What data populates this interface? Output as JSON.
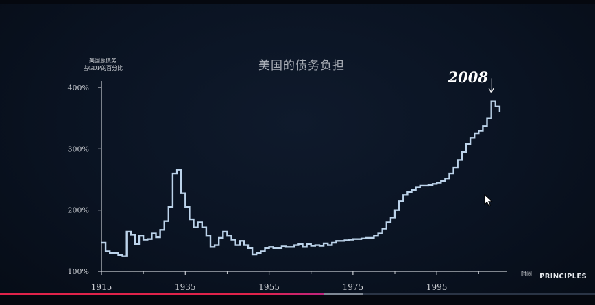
{
  "brand": "PRINCIPLES",
  "video": {
    "progress_fraction": 0.545,
    "buffered_fraction": 0.61
  },
  "chart_data": {
    "type": "line",
    "title": "美国的债务负担",
    "ylabel_lines": [
      "美国总债务",
      "占GDP的百分比"
    ],
    "xlabel": "时间",
    "annotation": "2008",
    "annotation_x": 2008,
    "xlim": [
      1915,
      2011
    ],
    "ylim": [
      100,
      400
    ],
    "xticks": [
      1915,
      1935,
      1955,
      1975,
      1995
    ],
    "yticks": [
      {
        "value": 100,
        "label": "100%"
      },
      {
        "value": 200,
        "label": "200%"
      },
      {
        "value": 300,
        "label": "300%"
      },
      {
        "value": 400,
        "label": "400%"
      }
    ],
    "colors": {
      "line": "#bcd3ea",
      "axis": "#c8ccd2",
      "text": "#c9ccd1"
    },
    "series": [
      {
        "values": [
          [
            1915,
            147
          ],
          [
            1916,
            133
          ],
          [
            1917,
            130
          ],
          [
            1918,
            130
          ],
          [
            1919,
            127
          ],
          [
            1920,
            125
          ],
          [
            1921,
            165
          ],
          [
            1922,
            160
          ],
          [
            1923,
            145
          ],
          [
            1924,
            158
          ],
          [
            1925,
            152
          ],
          [
            1926,
            153
          ],
          [
            1927,
            162
          ],
          [
            1928,
            156
          ],
          [
            1929,
            168
          ],
          [
            1930,
            182
          ],
          [
            1931,
            205
          ],
          [
            1932,
            260
          ],
          [
            1933,
            266
          ],
          [
            1934,
            228
          ],
          [
            1935,
            205
          ],
          [
            1936,
            185
          ],
          [
            1937,
            172
          ],
          [
            1938,
            180
          ],
          [
            1939,
            172
          ],
          [
            1940,
            158
          ],
          [
            1941,
            140
          ],
          [
            1942,
            143
          ],
          [
            1943,
            155
          ],
          [
            1944,
            165
          ],
          [
            1945,
            158
          ],
          [
            1946,
            152
          ],
          [
            1947,
            143
          ],
          [
            1948,
            150
          ],
          [
            1949,
            143
          ],
          [
            1950,
            138
          ],
          [
            1951,
            128
          ],
          [
            1952,
            130
          ],
          [
            1953,
            133
          ],
          [
            1954,
            138
          ],
          [
            1955,
            140
          ],
          [
            1956,
            138
          ],
          [
            1957,
            138
          ],
          [
            1958,
            141
          ],
          [
            1959,
            140
          ],
          [
            1960,
            140
          ],
          [
            1961,
            143
          ],
          [
            1962,
            145
          ],
          [
            1963,
            140
          ],
          [
            1964,
            145
          ],
          [
            1965,
            142
          ],
          [
            1966,
            143
          ],
          [
            1967,
            142
          ],
          [
            1968,
            146
          ],
          [
            1969,
            143
          ],
          [
            1970,
            147
          ],
          [
            1971,
            150
          ],
          [
            1972,
            150
          ],
          [
            1973,
            151
          ],
          [
            1974,
            152
          ],
          [
            1975,
            153
          ],
          [
            1976,
            153
          ],
          [
            1977,
            154
          ],
          [
            1978,
            155
          ],
          [
            1979,
            155
          ],
          [
            1980,
            158
          ],
          [
            1981,
            162
          ],
          [
            1982,
            170
          ],
          [
            1983,
            180
          ],
          [
            1984,
            188
          ],
          [
            1985,
            200
          ],
          [
            1986,
            215
          ],
          [
            1987,
            225
          ],
          [
            1988,
            230
          ],
          [
            1989,
            233
          ],
          [
            1990,
            237
          ],
          [
            1991,
            240
          ],
          [
            1992,
            240
          ],
          [
            1993,
            241
          ],
          [
            1994,
            243
          ],
          [
            1995,
            245
          ],
          [
            1996,
            248
          ],
          [
            1997,
            252
          ],
          [
            1998,
            260
          ],
          [
            1999,
            270
          ],
          [
            2000,
            282
          ],
          [
            2001,
            295
          ],
          [
            2002,
            308
          ],
          [
            2003,
            318
          ],
          [
            2004,
            325
          ],
          [
            2005,
            330
          ],
          [
            2006,
            337
          ],
          [
            2007,
            350
          ],
          [
            2008,
            378
          ],
          [
            2009,
            370
          ],
          [
            2010,
            360
          ]
        ]
      }
    ]
  }
}
